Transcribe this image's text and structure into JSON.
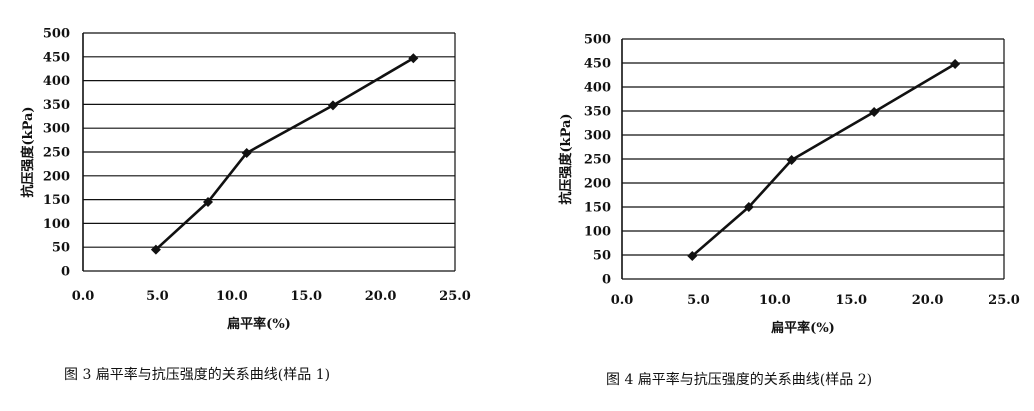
{
  "chart_data": [
    {
      "type": "line",
      "caption": "图 3   扁平率与抗压强度的关系曲线(样品 1)",
      "xlabel": "扁平率(%)",
      "ylabel": "抗压强度(kPa)",
      "xlim": [
        0,
        25
      ],
      "ylim": [
        0,
        500
      ],
      "x_ticks": [
        "0.0",
        "5.0",
        "10.0",
        "15.0",
        "20.0",
        "25.0"
      ],
      "y_ticks": [
        "0",
        "50",
        "100",
        "150",
        "200",
        "250",
        "300",
        "350",
        "400",
        "450",
        "500"
      ],
      "grid": "horizontal",
      "series": [
        {
          "x": [
            4.9,
            8.4,
            11.0,
            16.8,
            22.2
          ],
          "y": [
            45,
            145,
            248,
            348,
            447
          ]
        }
      ]
    },
    {
      "type": "line",
      "caption": "图 4   扁平率与抗压强度的关系曲线(样品 2)",
      "xlabel": "扁平率(%)",
      "ylabel": "抗压强度(kPa)",
      "xlim": [
        0,
        25
      ],
      "ylim": [
        0,
        500
      ],
      "x_ticks": [
        "0.0",
        "5.0",
        "10.0",
        "15.0",
        "20.0",
        "25.0"
      ],
      "y_ticks": [
        "0",
        "50",
        "100",
        "150",
        "200",
        "250",
        "300",
        "350",
        "400",
        "450",
        "500"
      ],
      "grid": "horizontal",
      "series": [
        {
          "x": [
            4.6,
            8.3,
            11.1,
            16.5,
            21.8
          ],
          "y": [
            48,
            150,
            248,
            348,
            448
          ]
        }
      ]
    }
  ]
}
